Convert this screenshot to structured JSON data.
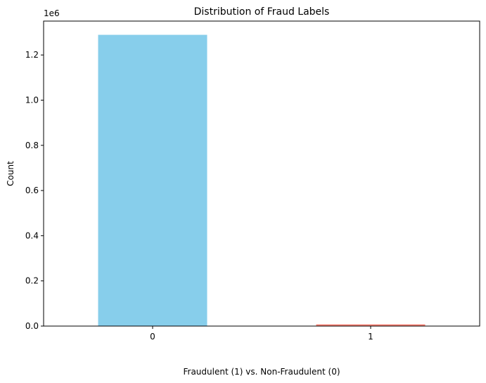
{
  "chart_data": {
    "type": "bar",
    "title": "Distribution of Fraud Labels",
    "xlabel": "Fraudulent (1) vs. Non-Fraudulent (0)",
    "ylabel": "Count",
    "categories": [
      "0",
      "1"
    ],
    "values": [
      1289169,
      7506
    ],
    "bar_colors": [
      "#87ceeb",
      "#fa8072"
    ],
    "ylim": [
      0,
      1350000
    ],
    "yticks": [
      0,
      200000,
      400000,
      600000,
      800000,
      1000000,
      1200000
    ],
    "ytick_labels": [
      "0.0",
      "0.2",
      "0.4",
      "0.6",
      "0.8",
      "1.0",
      "1.2"
    ],
    "offset_text": "1e6",
    "grid": false,
    "legend": "none"
  }
}
